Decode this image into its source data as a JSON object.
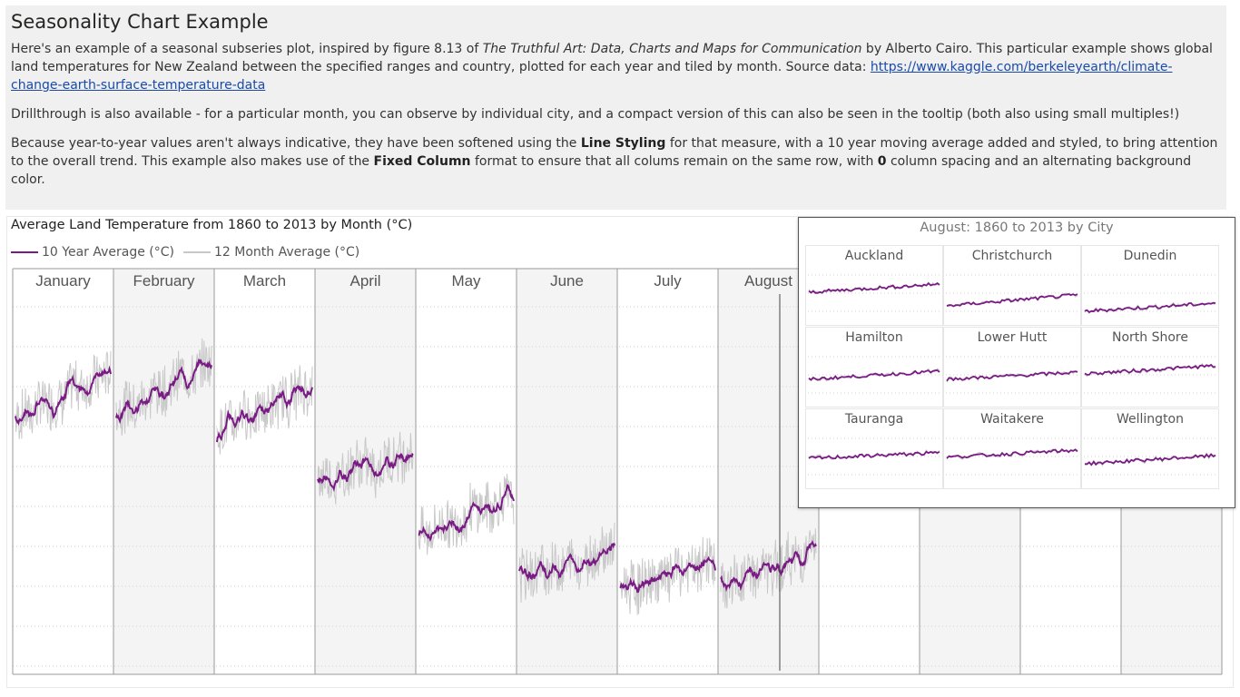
{
  "page": {
    "title": "Seasonality Chart Example",
    "intro": {
      "p1_before": "Here's an example of a seasonal subseries plot, inspired by figure 8.13 of ",
      "p1_book": "The Truthful Art: Data, Charts and Maps for Communication",
      "p1_after": " by Alberto Cairo. This particular example shows global land temperatures for New Zealand between the specified ranges and country, plotted for each year and tiled by month. Source data: ",
      "p1_link": "https://www.kaggle.com/berkeleyearth/climate-change-earth-surface-temperature-data",
      "p2": "Drillthrough is also available - for a particular month, you can observe by individual city, and a compact version of this can also be seen in the tooltip (both also using small multiples!)",
      "p3_a": "Because year-to-year values aren't always indicative, they have been softened using the ",
      "p3_b": "Line Styling",
      "p3_c": " for that measure, with a 10 year moving average added and styled, to bring attention to the overall trend. This example also makes use of the ",
      "p3_d": "Fixed Column",
      "p3_e": " format to ensure that all colums remain on the same row, with ",
      "p3_f": "0",
      "p3_g": " column spacing and an alternating background color."
    }
  },
  "colors": {
    "avg10": "#7a1a84",
    "avg12": "#c8c8c8",
    "panel_alt": "#f4f4f4",
    "panel_border": "#9a9a9a"
  },
  "chart_data": {
    "type": "line",
    "title": "Average Land Temperature from 1860 to 2013 by Month (°C)",
    "xlabel": "",
    "ylabel": "",
    "ylim": [
      4,
      22
    ],
    "grid": true,
    "legend_position": "top-left",
    "series_names": [
      "10 Year Average (°C)",
      "12 Month Average (°C)"
    ],
    "x_range": [
      1860,
      2013
    ],
    "months": [
      {
        "name": "January",
        "start": 16.2,
        "end": 18.4
      },
      {
        "name": "February",
        "start": 16.5,
        "end": 18.8
      },
      {
        "name": "March",
        "start": 15.6,
        "end": 17.6
      },
      {
        "name": "April",
        "start": 13.0,
        "end": 14.6
      },
      {
        "name": "May",
        "start": 10.5,
        "end": 12.3
      },
      {
        "name": "June",
        "start": 8.5,
        "end": 9.9
      },
      {
        "name": "July",
        "start": 7.8,
        "end": 9.3
      },
      {
        "name": "August",
        "start": 7.9,
        "end": 9.9
      },
      {
        "name": "",
        "start": null,
        "end": null
      },
      {
        "name": "",
        "start": null,
        "end": null
      },
      {
        "name": "",
        "start": null,
        "end": null
      },
      {
        "name": "",
        "start": null,
        "end": null
      }
    ],
    "tooltip": {
      "title": "August: 1860 to 2013 by City",
      "cities": [
        {
          "name": "Auckland",
          "start": 0.45,
          "end": 0.6
        },
        {
          "name": "Christchurch",
          "start": 0.2,
          "end": 0.4
        },
        {
          "name": "Dunedin",
          "start": 0.1,
          "end": 0.25
        },
        {
          "name": "Hamilton",
          "start": 0.35,
          "end": 0.5
        },
        {
          "name": "Lower Hutt",
          "start": 0.35,
          "end": 0.48
        },
        {
          "name": "North Shore",
          "start": 0.45,
          "end": 0.6
        },
        {
          "name": "Tauranga",
          "start": 0.4,
          "end": 0.5
        },
        {
          "name": "Waitakere",
          "start": 0.42,
          "end": 0.55
        },
        {
          "name": "Wellington",
          "start": 0.3,
          "end": 0.45
        }
      ]
    }
  }
}
